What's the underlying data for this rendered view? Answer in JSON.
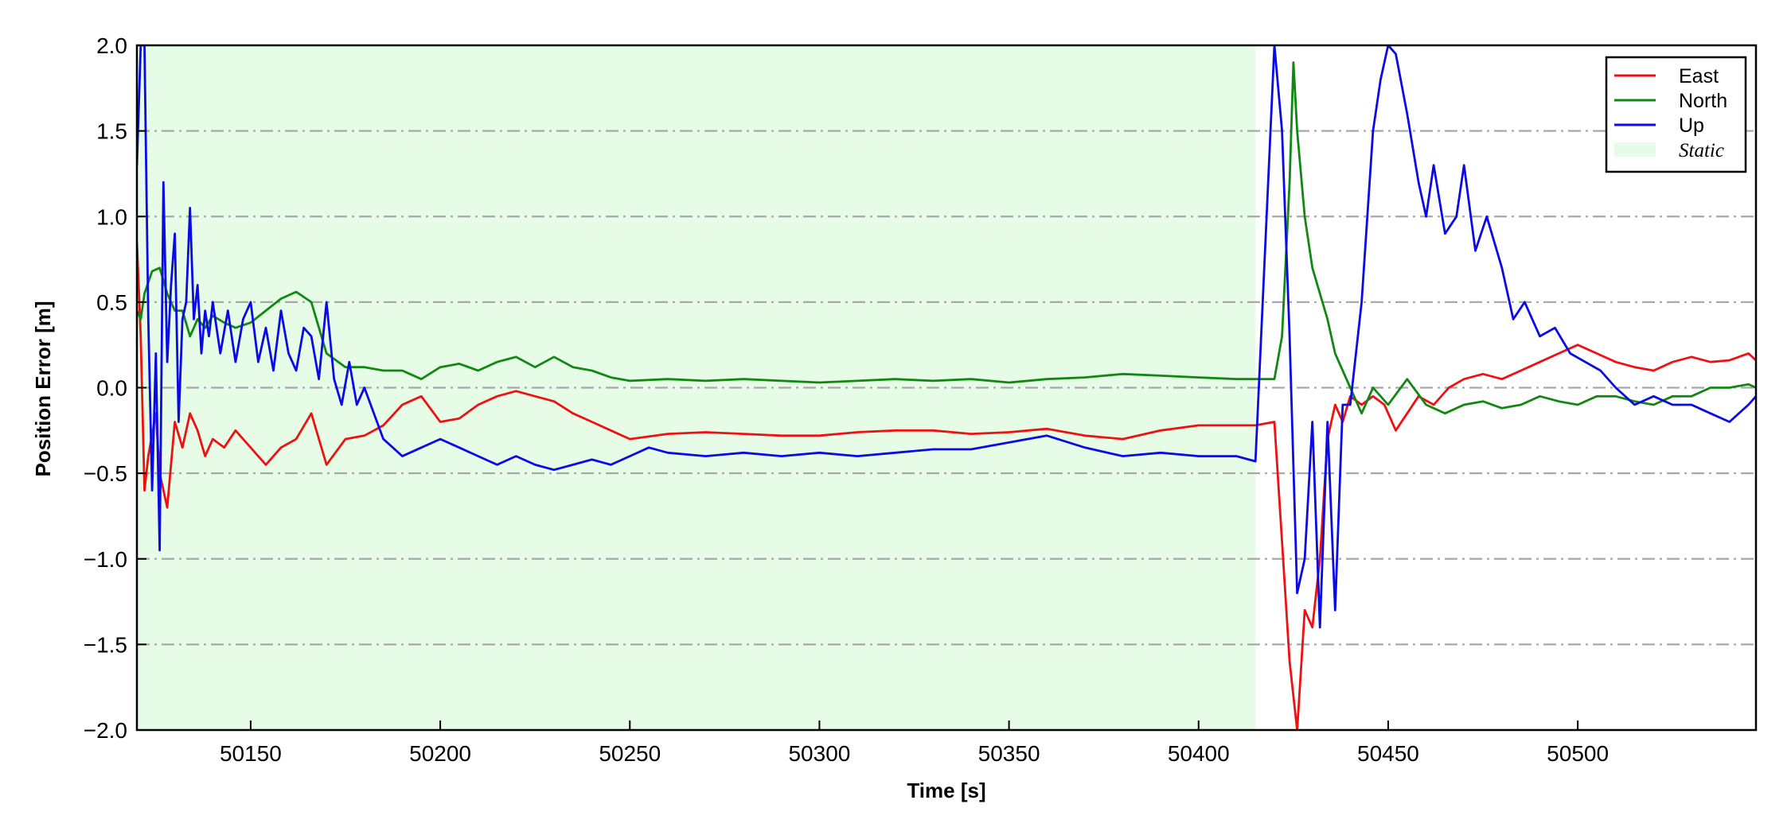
{
  "chart_data": {
    "type": "line",
    "title": "",
    "xlabel": "Time [s]",
    "ylabel": "Position Error [m]",
    "xlim": [
      50120,
      50547
    ],
    "ylim": [
      -2.0,
      2.0
    ],
    "x_ticks": [
      50150,
      50200,
      50250,
      50300,
      50350,
      50400,
      50450,
      50500
    ],
    "x_tick_labels": [
      "50150",
      "50200",
      "50250",
      "50300",
      "50350",
      "50400",
      "50450",
      "50500"
    ],
    "y_ticks": [
      -2.0,
      -1.5,
      -1.0,
      -0.5,
      0.0,
      0.5,
      1.0,
      1.5,
      2.0
    ],
    "y_tick_labels": [
      "−2.0",
      "−1.5",
      "−1.0",
      "−0.5",
      "0.0",
      "0.5",
      "1.0",
      "1.5",
      "2.0"
    ],
    "grid": "horizontal dash-dot",
    "legend_position": "top-right",
    "shaded_region": {
      "name": "Static",
      "x_start": 50120,
      "x_end": 50415,
      "color": "#e6fce6"
    },
    "series": [
      {
        "name": "East",
        "color": "#ee1111",
        "x": [
          50120,
          50121,
          50122,
          50123,
          50125,
          50126,
          50128,
          50130,
          50132,
          50134,
          50136,
          50138,
          50140,
          50143,
          50146,
          50150,
          50154,
          50158,
          50162,
          50166,
          50170,
          50175,
          50180,
          50185,
          50190,
          50195,
          50200,
          50205,
          50210,
          50215,
          50220,
          50225,
          50230,
          50235,
          50240,
          50245,
          50250,
          50260,
          50270,
          50280,
          50290,
          50300,
          50310,
          50320,
          50330,
          50340,
          50350,
          50360,
          50370,
          50380,
          50390,
          50400,
          50410,
          50415,
          50420,
          50422,
          50424,
          50426,
          50428,
          50430,
          50432,
          50434,
          50436,
          50438,
          50440,
          50443,
          50446,
          50449,
          50452,
          50455,
          50458,
          50462,
          50466,
          50470,
          50475,
          50480,
          50485,
          50490,
          50495,
          50500,
          50505,
          50510,
          50515,
          50520,
          50525,
          50530,
          50535,
          50540,
          50545,
          50547
        ],
        "y": [
          0.85,
          0.3,
          -0.6,
          -0.4,
          -0.15,
          -0.5,
          -0.7,
          -0.2,
          -0.35,
          -0.15,
          -0.25,
          -0.4,
          -0.3,
          -0.35,
          -0.25,
          -0.35,
          -0.45,
          -0.35,
          -0.3,
          -0.15,
          -0.45,
          -0.3,
          -0.28,
          -0.22,
          -0.1,
          -0.05,
          -0.2,
          -0.18,
          -0.1,
          -0.05,
          -0.02,
          -0.05,
          -0.08,
          -0.15,
          -0.2,
          -0.25,
          -0.3,
          -0.27,
          -0.26,
          -0.27,
          -0.28,
          -0.28,
          -0.26,
          -0.25,
          -0.25,
          -0.27,
          -0.26,
          -0.24,
          -0.28,
          -0.3,
          -0.25,
          -0.22,
          -0.22,
          -0.22,
          -0.2,
          -0.9,
          -1.6,
          -2.0,
          -1.3,
          -1.4,
          -1.0,
          -0.3,
          -0.1,
          -0.2,
          -0.05,
          -0.1,
          -0.05,
          -0.1,
          -0.25,
          -0.15,
          -0.05,
          -0.1,
          0.0,
          0.05,
          0.08,
          0.05,
          0.1,
          0.15,
          0.2,
          0.25,
          0.2,
          0.15,
          0.12,
          0.1,
          0.15,
          0.18,
          0.15,
          0.16,
          0.2,
          0.16
        ]
      },
      {
        "name": "North",
        "color": "#118811",
        "x": [
          50120,
          50121,
          50122,
          50124,
          50126,
          50128,
          50130,
          50132,
          50134,
          50136,
          50138,
          50140,
          50143,
          50146,
          50150,
          50154,
          50158,
          50162,
          50166,
          50170,
          50175,
          50180,
          50185,
          50190,
          50195,
          50200,
          50205,
          50210,
          50215,
          50220,
          50225,
          50230,
          50235,
          50240,
          50245,
          50250,
          50260,
          50270,
          50280,
          50290,
          50300,
          50310,
          50320,
          50330,
          50340,
          50350,
          50360,
          50370,
          50380,
          50390,
          50400,
          50410,
          50415,
          50420,
          50422,
          50424,
          50425,
          50426,
          50428,
          50430,
          50432,
          50434,
          50436,
          50438,
          50440,
          50443,
          50446,
          50450,
          50455,
          50460,
          50465,
          50470,
          50475,
          50480,
          50485,
          50490,
          50495,
          50500,
          50505,
          50510,
          50515,
          50520,
          50525,
          50530,
          50535,
          50540,
          50545,
          50547
        ],
        "y": [
          0.45,
          0.4,
          0.55,
          0.68,
          0.7,
          0.55,
          0.45,
          0.45,
          0.3,
          0.4,
          0.35,
          0.42,
          0.38,
          0.35,
          0.38,
          0.45,
          0.52,
          0.56,
          0.5,
          0.2,
          0.12,
          0.12,
          0.1,
          0.1,
          0.05,
          0.12,
          0.14,
          0.1,
          0.15,
          0.18,
          0.12,
          0.18,
          0.12,
          0.1,
          0.06,
          0.04,
          0.05,
          0.04,
          0.05,
          0.04,
          0.03,
          0.04,
          0.05,
          0.04,
          0.05,
          0.03,
          0.05,
          0.06,
          0.08,
          0.07,
          0.06,
          0.05,
          0.05,
          0.05,
          0.3,
          1.2,
          1.9,
          1.5,
          1.0,
          0.7,
          0.55,
          0.4,
          0.2,
          0.1,
          0.0,
          -0.15,
          0.0,
          -0.1,
          0.05,
          -0.1,
          -0.15,
          -0.1,
          -0.08,
          -0.12,
          -0.1,
          -0.05,
          -0.08,
          -0.1,
          -0.05,
          -0.05,
          -0.08,
          -0.1,
          -0.05,
          -0.05,
          0.0,
          0.0,
          0.02,
          0.0
        ]
      },
      {
        "name": "Up",
        "color": "#0a0ae6",
        "x": [
          50120,
          50121,
          50122,
          50123,
          50124,
          50125,
          50126,
          50127,
          50128,
          50129,
          50130,
          50131,
          50132,
          50133,
          50134,
          50135,
          50136,
          50137,
          50138,
          50139,
          50140,
          50142,
          50144,
          50146,
          50148,
          50150,
          50152,
          50154,
          50156,
          50158,
          50160,
          50162,
          50164,
          50166,
          50168,
          50170,
          50172,
          50174,
          50176,
          50178,
          50180,
          50185,
          50190,
          50195,
          50200,
          50205,
          50210,
          50215,
          50220,
          50225,
          50230,
          50235,
          50240,
          50245,
          50250,
          50255,
          50260,
          50270,
          50280,
          50290,
          50300,
          50310,
          50320,
          50330,
          50340,
          50350,
          50360,
          50370,
          50380,
          50390,
          50400,
          50410,
          50415,
          50420,
          50422,
          50424,
          50426,
          50428,
          50430,
          50432,
          50434,
          50436,
          50438,
          50440,
          50443,
          50446,
          50448,
          50450,
          50452,
          50455,
          50458,
          50460,
          50462,
          50465,
          50468,
          50470,
          50473,
          50476,
          50480,
          50483,
          50486,
          50490,
          50494,
          50498,
          50502,
          50506,
          50510,
          50515,
          50520,
          50525,
          50530,
          50535,
          50540,
          50545,
          50547
        ],
        "y": [
          1.3,
          2.0,
          2.0,
          0.4,
          -0.6,
          0.2,
          -0.95,
          1.2,
          0.15,
          0.6,
          0.9,
          -0.2,
          0.4,
          0.5,
          1.05,
          0.4,
          0.6,
          0.2,
          0.45,
          0.3,
          0.5,
          0.2,
          0.45,
          0.15,
          0.4,
          0.5,
          0.15,
          0.35,
          0.1,
          0.45,
          0.2,
          0.1,
          0.35,
          0.3,
          0.05,
          0.5,
          0.05,
          -0.1,
          0.15,
          -0.1,
          0.0,
          -0.3,
          -0.4,
          -0.35,
          -0.3,
          -0.35,
          -0.4,
          -0.45,
          -0.4,
          -0.45,
          -0.48,
          -0.45,
          -0.42,
          -0.45,
          -0.4,
          -0.35,
          -0.38,
          -0.4,
          -0.38,
          -0.4,
          -0.38,
          -0.4,
          -0.38,
          -0.36,
          -0.36,
          -0.32,
          -0.28,
          -0.35,
          -0.4,
          -0.38,
          -0.4,
          -0.4,
          -0.43,
          2.0,
          1.5,
          0.3,
          -1.2,
          -1.0,
          -0.2,
          -1.4,
          -0.2,
          -1.3,
          -0.1,
          -0.1,
          0.5,
          1.5,
          1.8,
          2.0,
          1.95,
          1.6,
          1.2,
          1.0,
          1.3,
          0.9,
          1.0,
          1.3,
          0.8,
          1.0,
          0.7,
          0.4,
          0.5,
          0.3,
          0.35,
          0.2,
          0.15,
          0.1,
          0.0,
          -0.1,
          -0.05,
          -0.1,
          -0.1,
          -0.15,
          -0.2,
          -0.1,
          -0.05
        ]
      }
    ]
  }
}
